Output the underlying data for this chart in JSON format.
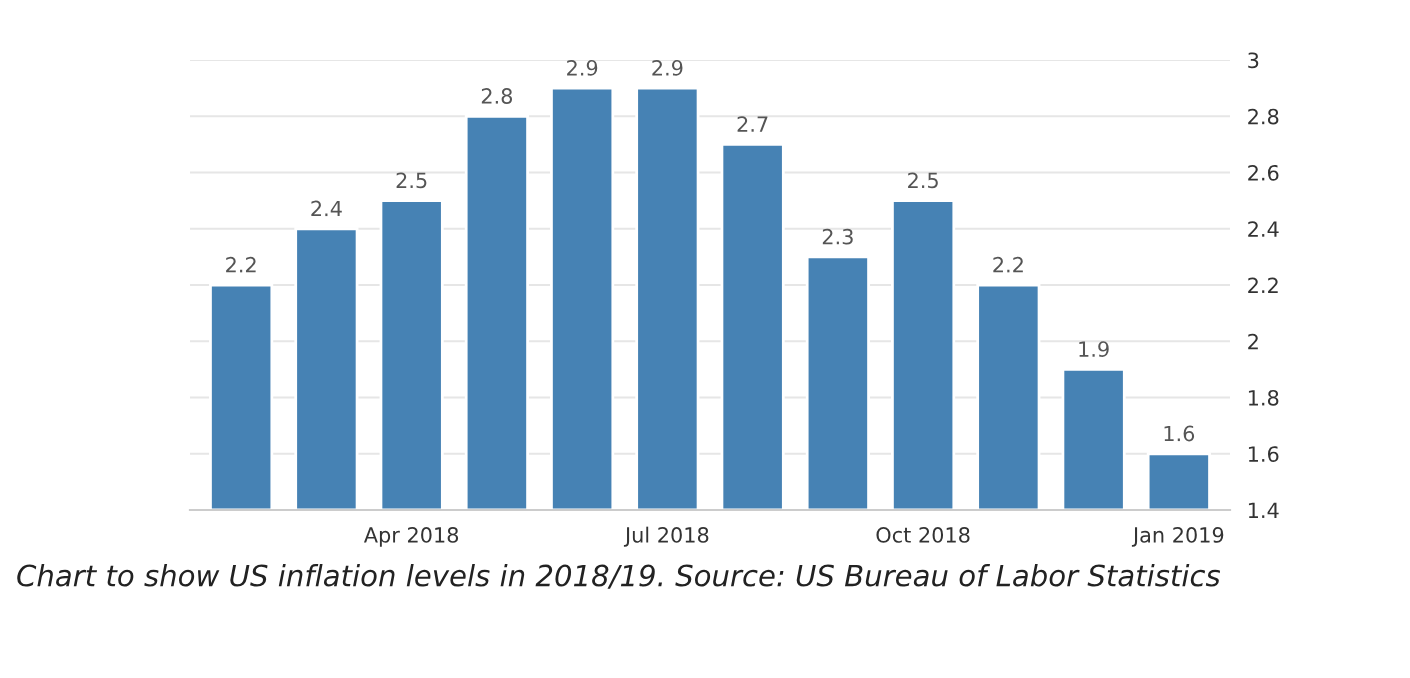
{
  "chart_data": {
    "type": "bar",
    "categories": [
      null,
      null,
      "Apr 2018",
      null,
      null,
      "Jul 2018",
      null,
      null,
      "Oct 2018",
      null,
      null,
      "Jan 2019"
    ],
    "values": [
      2.2,
      2.4,
      2.5,
      2.8,
      2.9,
      2.9,
      2.7,
      2.3,
      2.5,
      2.2,
      1.9,
      1.6
    ],
    "color": "#4682b4",
    "ylim": [
      1.4,
      3
    ],
    "yticks": [
      1.4,
      1.6,
      1.8,
      2,
      2.2,
      2.4,
      2.6,
      2.8,
      3
    ],
    "grid": "y",
    "data_labels": true,
    "annotations": [
      "Chart to show US inflation levels in 2018/19. Source: US Bureau of Labor Statistics"
    ]
  }
}
